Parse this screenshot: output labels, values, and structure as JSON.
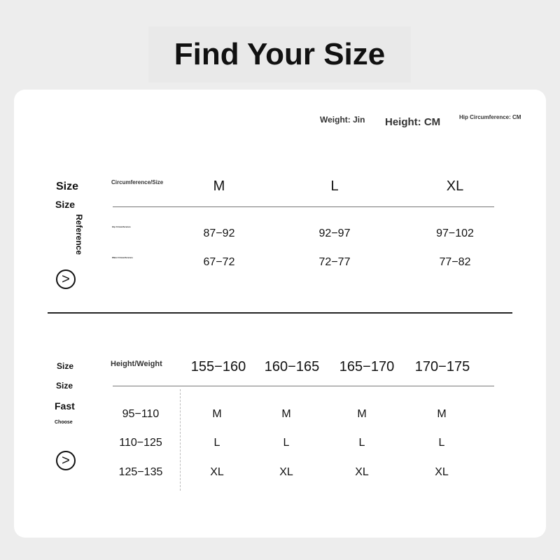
{
  "title": "Find Your Size",
  "units": {
    "weight": "Weight: Jin",
    "height": "Height: CM",
    "hip": "Hip Circumference: CM"
  },
  "reference": {
    "side": [
      "Size",
      "Size",
      "Reference"
    ],
    "header": "Circumference/Size",
    "sizes": [
      "M",
      "L",
      "XL"
    ],
    "rows": [
      {
        "label": "Hip Circumference",
        "values": [
          "87−92",
          "92−97",
          "97−102"
        ]
      },
      {
        "label": "Waist Circumference",
        "values": [
          "67−72",
          "72−77",
          "77−82"
        ]
      }
    ]
  },
  "fast": {
    "side": [
      "Size",
      "Size",
      "Fast",
      "Choose"
    ],
    "header": "Height/Weight",
    "heights": [
      "155−160",
      "160−165",
      "165−170",
      "170−175"
    ],
    "rows": [
      {
        "weight": "95−110",
        "values": [
          "M",
          "M",
          "M",
          "M"
        ]
      },
      {
        "weight": "110−125",
        "values": [
          "L",
          "L",
          "L",
          "L"
        ]
      },
      {
        "weight": "125−135",
        "values": [
          "XL",
          "XL",
          "XL",
          "XL"
        ]
      }
    ]
  },
  "arrow_icon": "chevron-right-circle-icon"
}
